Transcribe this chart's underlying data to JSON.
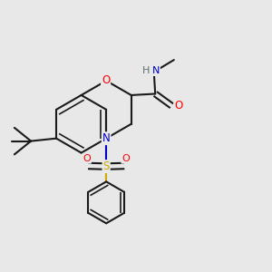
{
  "bg_color": "#e8e8e8",
  "bond_color": "#1a1a1a",
  "bond_width": 1.5,
  "colors": {
    "O": "#ff0000",
    "N": "#0000cc",
    "S": "#ccaa00",
    "H": "#607070",
    "C": "#1a1a1a"
  },
  "figsize": [
    3.0,
    3.0
  ],
  "dpi": 100
}
